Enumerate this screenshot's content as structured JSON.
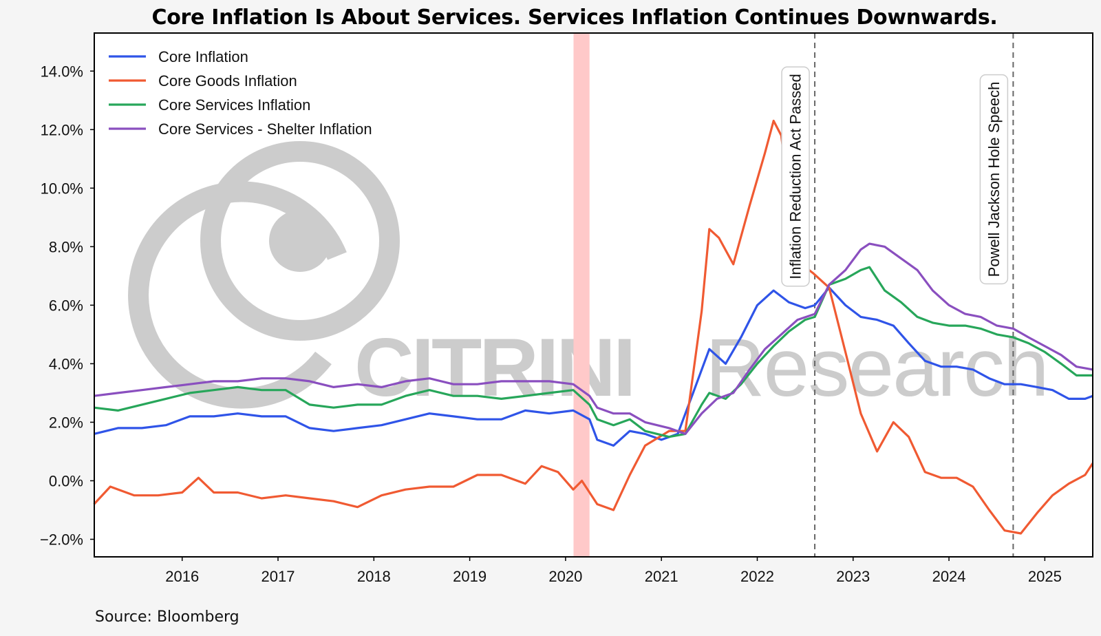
{
  "title": "Core Inflation Is About Services. Services Inflation Continues Downwards.",
  "source": "Source: Bloomberg",
  "watermark": {
    "brand_bold": "CITRINI",
    "brand_light": "Research",
    "logo_icon": "person-circle-logo"
  },
  "chart_data": {
    "type": "line",
    "xlim": [
      2015.083,
      2025.5
    ],
    "ylim": [
      -2.6,
      15.3
    ],
    "x_ticks": [
      {
        "value": 2016,
        "label": "2016"
      },
      {
        "value": 2017,
        "label": "2017"
      },
      {
        "value": 2018,
        "label": "2018"
      },
      {
        "value": 2019,
        "label": "2019"
      },
      {
        "value": 2020,
        "label": "2020"
      },
      {
        "value": 2021,
        "label": "2021"
      },
      {
        "value": 2022,
        "label": "2022"
      },
      {
        "value": 2023,
        "label": "2023"
      },
      {
        "value": 2024,
        "label": "2024"
      },
      {
        "value": 2025,
        "label": "2025"
      }
    ],
    "y_ticks": [
      {
        "value": -2,
        "label": "−2.0%"
      },
      {
        "value": 0,
        "label": "0.0%"
      },
      {
        "value": 2,
        "label": "2.0%"
      },
      {
        "value": 4,
        "label": "4.0%"
      },
      {
        "value": 6,
        "label": "6.0%"
      },
      {
        "value": 8,
        "label": "8.0%"
      },
      {
        "value": 10,
        "label": "10.0%"
      },
      {
        "value": 12,
        "label": "12.0%"
      },
      {
        "value": 14,
        "label": "14.0%"
      }
    ],
    "grid": false,
    "legend_position": "top-left",
    "shaded_region": {
      "x_start": 2020.083,
      "x_end": 2020.25,
      "color": "#ffc9c9"
    },
    "annotations": [
      {
        "x": 2022.6,
        "label": "Inflation Reduction Act Passed"
      },
      {
        "x": 2024.67,
        "label": "Powell Jackson Hole Speech"
      }
    ],
    "series": [
      {
        "name": "Core Inflation",
        "color": "#2f54e8",
        "points": [
          [
            2015.08,
            1.6
          ],
          [
            2015.33,
            1.8
          ],
          [
            2015.58,
            1.8
          ],
          [
            2015.83,
            1.9
          ],
          [
            2016.08,
            2.2
          ],
          [
            2016.33,
            2.2
          ],
          [
            2016.58,
            2.3
          ],
          [
            2016.83,
            2.2
          ],
          [
            2017.08,
            2.2
          ],
          [
            2017.33,
            1.8
          ],
          [
            2017.58,
            1.7
          ],
          [
            2017.83,
            1.8
          ],
          [
            2018.08,
            1.9
          ],
          [
            2018.33,
            2.1
          ],
          [
            2018.58,
            2.3
          ],
          [
            2018.83,
            2.2
          ],
          [
            2019.08,
            2.1
          ],
          [
            2019.33,
            2.1
          ],
          [
            2019.58,
            2.4
          ],
          [
            2019.83,
            2.3
          ],
          [
            2020.08,
            2.4
          ],
          [
            2020.25,
            2.1
          ],
          [
            2020.33,
            1.4
          ],
          [
            2020.5,
            1.2
          ],
          [
            2020.67,
            1.7
          ],
          [
            2020.83,
            1.6
          ],
          [
            2021.0,
            1.4
          ],
          [
            2021.17,
            1.6
          ],
          [
            2021.33,
            3.0
          ],
          [
            2021.5,
            4.5
          ],
          [
            2021.67,
            4.0
          ],
          [
            2021.83,
            4.9
          ],
          [
            2022.0,
            6.0
          ],
          [
            2022.17,
            6.5
          ],
          [
            2022.33,
            6.1
          ],
          [
            2022.5,
            5.9
          ],
          [
            2022.6,
            6.0
          ],
          [
            2022.75,
            6.6
          ],
          [
            2022.92,
            6.0
          ],
          [
            2023.08,
            5.6
          ],
          [
            2023.25,
            5.5
          ],
          [
            2023.42,
            5.3
          ],
          [
            2023.58,
            4.7
          ],
          [
            2023.75,
            4.1
          ],
          [
            2023.92,
            3.9
          ],
          [
            2024.08,
            3.9
          ],
          [
            2024.25,
            3.8
          ],
          [
            2024.42,
            3.5
          ],
          [
            2024.58,
            3.3
          ],
          [
            2024.75,
            3.3
          ],
          [
            2024.92,
            3.2
          ],
          [
            2025.08,
            3.1
          ],
          [
            2025.25,
            2.8
          ],
          [
            2025.42,
            2.8
          ],
          [
            2025.5,
            2.9
          ]
        ]
      },
      {
        "name": "Core Goods Inflation",
        "color": "#f05a32",
        "points": [
          [
            2015.08,
            -0.8
          ],
          [
            2015.25,
            -0.2
          ],
          [
            2015.5,
            -0.5
          ],
          [
            2015.75,
            -0.5
          ],
          [
            2016.0,
            -0.4
          ],
          [
            2016.17,
            0.1
          ],
          [
            2016.33,
            -0.4
          ],
          [
            2016.58,
            -0.4
          ],
          [
            2016.83,
            -0.6
          ],
          [
            2017.08,
            -0.5
          ],
          [
            2017.33,
            -0.6
          ],
          [
            2017.58,
            -0.7
          ],
          [
            2017.83,
            -0.9
          ],
          [
            2018.08,
            -0.5
          ],
          [
            2018.33,
            -0.3
          ],
          [
            2018.58,
            -0.2
          ],
          [
            2018.83,
            -0.2
          ],
          [
            2019.08,
            0.2
          ],
          [
            2019.33,
            0.2
          ],
          [
            2019.58,
            -0.1
          ],
          [
            2019.75,
            0.5
          ],
          [
            2019.92,
            0.3
          ],
          [
            2020.08,
            -0.3
          ],
          [
            2020.17,
            0.0
          ],
          [
            2020.33,
            -0.8
          ],
          [
            2020.5,
            -1.0
          ],
          [
            2020.67,
            0.2
          ],
          [
            2020.83,
            1.2
          ],
          [
            2021.08,
            1.7
          ],
          [
            2021.25,
            1.7
          ],
          [
            2021.42,
            5.8
          ],
          [
            2021.5,
            8.6
          ],
          [
            2021.6,
            8.3
          ],
          [
            2021.75,
            7.4
          ],
          [
            2021.92,
            9.4
          ],
          [
            2022.08,
            11.2
          ],
          [
            2022.17,
            12.3
          ],
          [
            2022.25,
            11.8
          ],
          [
            2022.42,
            7.5
          ],
          [
            2022.58,
            7.1
          ],
          [
            2022.75,
            6.6
          ],
          [
            2022.92,
            4.4
          ],
          [
            2023.08,
            2.3
          ],
          [
            2023.25,
            1.0
          ],
          [
            2023.42,
            2.0
          ],
          [
            2023.58,
            1.5
          ],
          [
            2023.75,
            0.3
          ],
          [
            2023.92,
            0.1
          ],
          [
            2024.08,
            0.1
          ],
          [
            2024.25,
            -0.2
          ],
          [
            2024.42,
            -1.0
          ],
          [
            2024.58,
            -1.7
          ],
          [
            2024.75,
            -1.8
          ],
          [
            2024.92,
            -1.1
          ],
          [
            2025.08,
            -0.5
          ],
          [
            2025.25,
            -0.1
          ],
          [
            2025.42,
            0.2
          ],
          [
            2025.5,
            0.6
          ]
        ]
      },
      {
        "name": "Core Services Inflation",
        "color": "#27a65a",
        "points": [
          [
            2015.08,
            2.5
          ],
          [
            2015.33,
            2.4
          ],
          [
            2015.58,
            2.6
          ],
          [
            2015.83,
            2.8
          ],
          [
            2016.08,
            3.0
          ],
          [
            2016.33,
            3.1
          ],
          [
            2016.58,
            3.2
          ],
          [
            2016.83,
            3.1
          ],
          [
            2017.08,
            3.1
          ],
          [
            2017.33,
            2.6
          ],
          [
            2017.58,
            2.5
          ],
          [
            2017.83,
            2.6
          ],
          [
            2018.08,
            2.6
          ],
          [
            2018.33,
            2.9
          ],
          [
            2018.58,
            3.1
          ],
          [
            2018.83,
            2.9
          ],
          [
            2019.08,
            2.9
          ],
          [
            2019.33,
            2.8
          ],
          [
            2019.58,
            2.9
          ],
          [
            2019.83,
            3.0
          ],
          [
            2020.08,
            3.1
          ],
          [
            2020.25,
            2.6
          ],
          [
            2020.33,
            2.1
          ],
          [
            2020.5,
            1.9
          ],
          [
            2020.67,
            2.1
          ],
          [
            2020.83,
            1.7
          ],
          [
            2021.08,
            1.5
          ],
          [
            2021.25,
            1.6
          ],
          [
            2021.42,
            2.6
          ],
          [
            2021.5,
            3.0
          ],
          [
            2021.67,
            2.8
          ],
          [
            2021.83,
            3.3
          ],
          [
            2022.0,
            4.0
          ],
          [
            2022.17,
            4.6
          ],
          [
            2022.33,
            5.1
          ],
          [
            2022.5,
            5.5
          ],
          [
            2022.6,
            5.6
          ],
          [
            2022.75,
            6.7
          ],
          [
            2022.92,
            6.9
          ],
          [
            2023.08,
            7.2
          ],
          [
            2023.17,
            7.3
          ],
          [
            2023.33,
            6.5
          ],
          [
            2023.5,
            6.1
          ],
          [
            2023.67,
            5.6
          ],
          [
            2023.83,
            5.4
          ],
          [
            2024.0,
            5.3
          ],
          [
            2024.17,
            5.3
          ],
          [
            2024.33,
            5.2
          ],
          [
            2024.5,
            5.0
          ],
          [
            2024.67,
            4.9
          ],
          [
            2024.83,
            4.7
          ],
          [
            2025.0,
            4.4
          ],
          [
            2025.17,
            4.0
          ],
          [
            2025.33,
            3.6
          ],
          [
            2025.5,
            3.6
          ]
        ]
      },
      {
        "name": "Core Services - Shelter Inflation",
        "color": "#8a4fbf",
        "points": [
          [
            2015.08,
            2.9
          ],
          [
            2015.33,
            3.0
          ],
          [
            2015.58,
            3.1
          ],
          [
            2015.83,
            3.2
          ],
          [
            2016.08,
            3.3
          ],
          [
            2016.33,
            3.4
          ],
          [
            2016.58,
            3.4
          ],
          [
            2016.83,
            3.5
          ],
          [
            2017.08,
            3.5
          ],
          [
            2017.33,
            3.4
          ],
          [
            2017.58,
            3.2
          ],
          [
            2017.83,
            3.3
          ],
          [
            2018.08,
            3.2
          ],
          [
            2018.33,
            3.4
          ],
          [
            2018.58,
            3.5
          ],
          [
            2018.83,
            3.3
          ],
          [
            2019.08,
            3.3
          ],
          [
            2019.33,
            3.4
          ],
          [
            2019.58,
            3.4
          ],
          [
            2019.83,
            3.4
          ],
          [
            2020.08,
            3.3
          ],
          [
            2020.25,
            2.9
          ],
          [
            2020.33,
            2.5
          ],
          [
            2020.5,
            2.3
          ],
          [
            2020.67,
            2.3
          ],
          [
            2020.83,
            2.0
          ],
          [
            2021.08,
            1.8
          ],
          [
            2021.25,
            1.6
          ],
          [
            2021.42,
            2.3
          ],
          [
            2021.58,
            2.8
          ],
          [
            2021.75,
            3.0
          ],
          [
            2021.92,
            3.8
          ],
          [
            2022.08,
            4.5
          ],
          [
            2022.25,
            5.0
          ],
          [
            2022.42,
            5.5
          ],
          [
            2022.6,
            5.7
          ],
          [
            2022.75,
            6.7
          ],
          [
            2022.92,
            7.2
          ],
          [
            2023.08,
            7.9
          ],
          [
            2023.17,
            8.1
          ],
          [
            2023.33,
            8.0
          ],
          [
            2023.5,
            7.6
          ],
          [
            2023.67,
            7.2
          ],
          [
            2023.83,
            6.5
          ],
          [
            2024.0,
            6.0
          ],
          [
            2024.17,
            5.7
          ],
          [
            2024.33,
            5.6
          ],
          [
            2024.5,
            5.3
          ],
          [
            2024.67,
            5.2
          ],
          [
            2024.83,
            4.9
          ],
          [
            2025.0,
            4.6
          ],
          [
            2025.17,
            4.3
          ],
          [
            2025.33,
            3.9
          ],
          [
            2025.5,
            3.8
          ]
        ]
      }
    ]
  }
}
